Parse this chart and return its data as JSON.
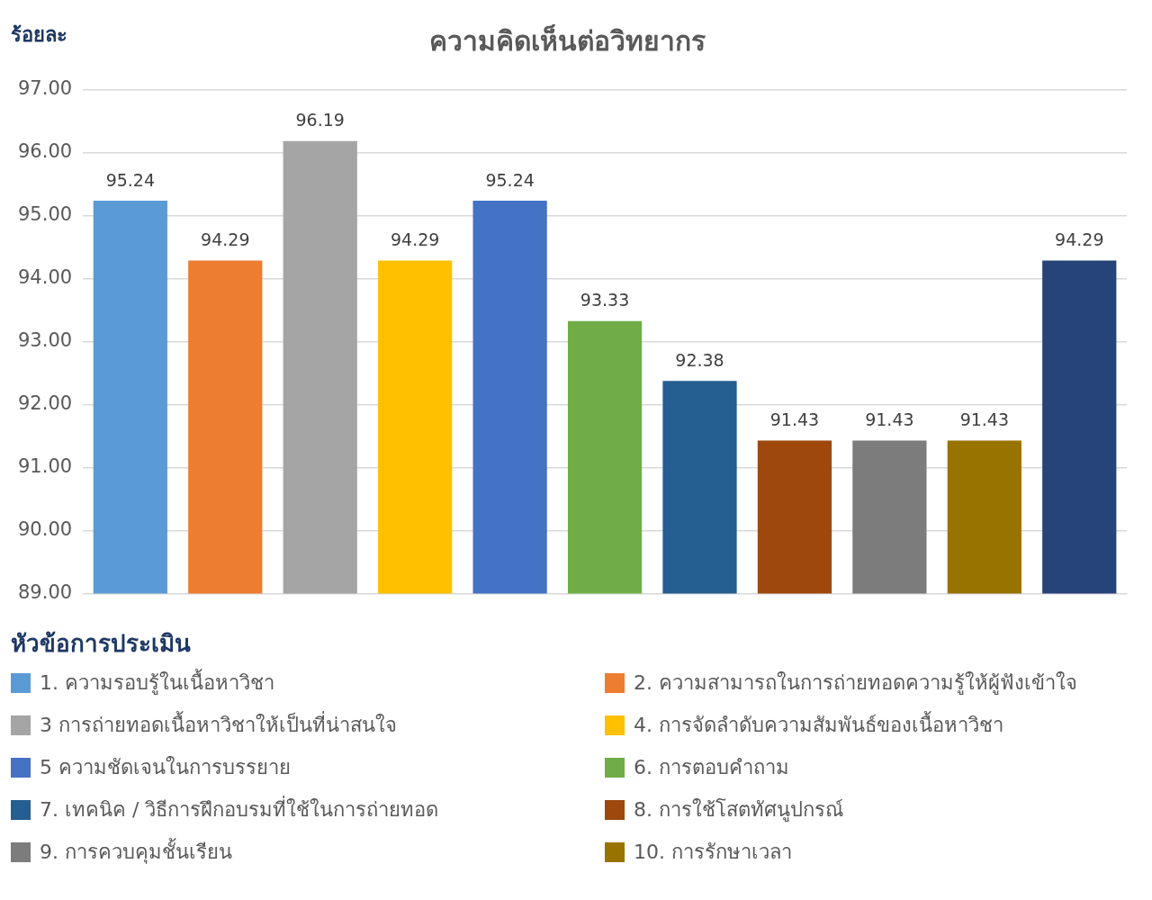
{
  "chart_data": {
    "type": "bar",
    "title": "ความคิดเห็นต่อวิทยากร",
    "ylabel": "ร้อยละ",
    "legend_title": "หัวข้อการประเมิน",
    "categories": [
      null,
      null,
      null,
      null,
      null,
      null,
      null,
      null,
      null,
      null,
      null
    ],
    "series": [
      {
        "name": "1. ความรอบรู้ในเนื้อหาวิชา",
        "color": "#5b9bd5",
        "values": [
          95.24,
          null,
          null,
          null,
          null,
          null,
          null,
          null,
          null,
          null,
          null
        ]
      },
      {
        "name": "2. ความสามารถในการถ่ายทอดความรู้ให้ผู้ฟังเข้าใจ",
        "color": "#ed7d31",
        "values": [
          null,
          94.29,
          null,
          null,
          null,
          null,
          null,
          null,
          null,
          null,
          null
        ]
      },
      {
        "name": "3  การถ่ายทอดเนื้อหาวิชาให้เป็นที่น่าสนใจ",
        "color": "#a5a5a5",
        "values": [
          null,
          null,
          96.19,
          null,
          null,
          null,
          null,
          null,
          null,
          null,
          null
        ]
      },
      {
        "name": "4. การจัดลำดับความสัมพันธ์ของเนื้อหาวิชา",
        "color": "#ffc000",
        "values": [
          null,
          null,
          null,
          94.29,
          null,
          null,
          null,
          null,
          null,
          null,
          null
        ]
      },
      {
        "name": "5  ความชัดเจนในการบรรยาย",
        "color": "#4472c4",
        "values": [
          null,
          null,
          null,
          null,
          95.24,
          null,
          null,
          null,
          null,
          null,
          null
        ]
      },
      {
        "name": "6. การตอบคำถาม",
        "color": "#70ad47",
        "values": [
          null,
          null,
          null,
          null,
          null,
          93.33,
          null,
          null,
          null,
          null,
          null
        ]
      },
      {
        "name": "7. เทคนิค / วิธีการฝึกอบรมที่ใช้ในการถ่ายทอด",
        "color": "#255e91",
        "values": [
          null,
          null,
          null,
          null,
          null,
          null,
          92.38,
          null,
          null,
          null,
          null
        ]
      },
      {
        "name": "8. การใช้โสตทัศนูปกรณ์",
        "color": "#9e480e",
        "values": [
          null,
          null,
          null,
          null,
          null,
          null,
          null,
          91.43,
          null,
          null,
          null
        ]
      },
      {
        "name": "9. การควบคุมชั้นเรียน",
        "color": "#7c7c7c",
        "values": [
          null,
          null,
          null,
          null,
          null,
          null,
          null,
          null,
          91.43,
          null,
          null
        ]
      },
      {
        "name": "10. การรักษาเวลา",
        "color": "#997300",
        "values": [
          null,
          null,
          null,
          null,
          null,
          null,
          null,
          null,
          null,
          91.43,
          null
        ]
      },
      {
        "color": "#264478",
        "values": [
          null,
          null,
          null,
          null,
          null,
          null,
          null,
          null,
          null,
          null,
          94.29
        ]
      }
    ],
    "ylim": [
      89,
      97
    ],
    "yticks": [
      {
        "value": 89,
        "label": "89.00"
      },
      {
        "value": 90,
        "label": "90.00"
      },
      {
        "value": 91,
        "label": "91.00"
      },
      {
        "value": 92,
        "label": "92.00"
      },
      {
        "value": 93,
        "label": "93.00"
      },
      {
        "value": 94,
        "label": "94.00"
      },
      {
        "value": 95,
        "label": "95.00"
      },
      {
        "value": 96,
        "label": "96.00"
      },
      {
        "value": 97,
        "label": "97.00"
      }
    ],
    "grid": "y",
    "legend": "bottom",
    "data_labels": true
  }
}
